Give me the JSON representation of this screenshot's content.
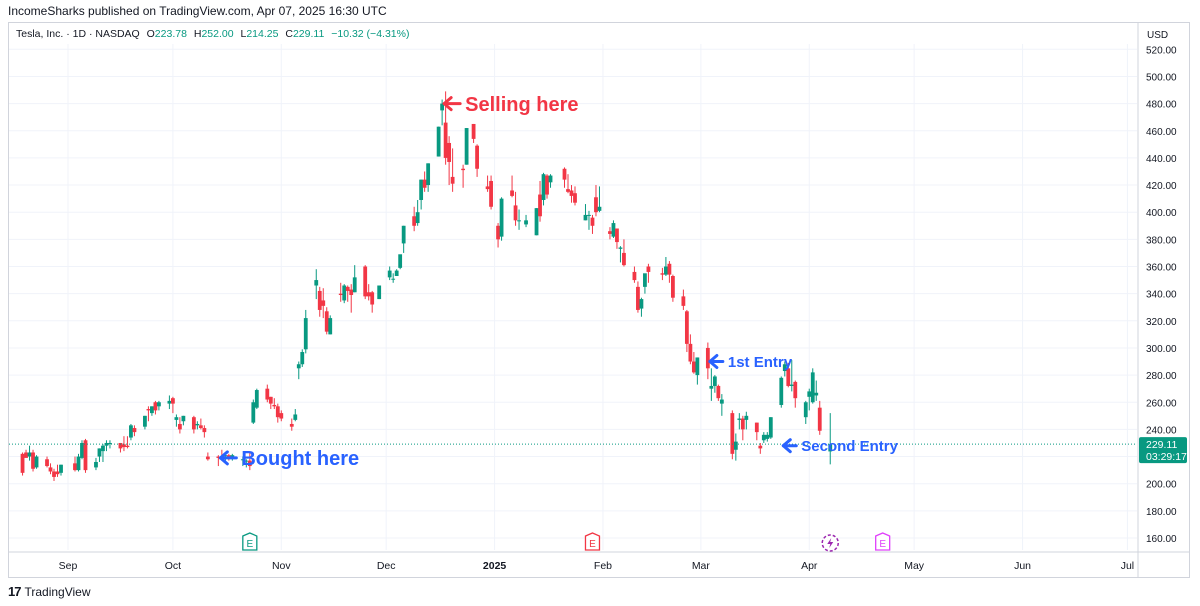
{
  "header": {
    "published_text": "IncomeSharks published on TradingView.com, Apr 07, 2025 16:30 UTC"
  },
  "legend": {
    "symbol": "Tesla, Inc. · 1D · NASDAQ",
    "o_label": "O",
    "o_value": "223.78",
    "h_label": "H",
    "h_value": "252.00",
    "l_label": "L",
    "l_value": "214.25",
    "c_label": "C",
    "c_value": "229.11",
    "change": "−10.32 (−4.31%)"
  },
  "price_axis": {
    "currency": "USD"
  },
  "footer": {
    "brand": "TradingView",
    "logo_glyph": "17"
  },
  "colors": {
    "up": "#089981",
    "down": "#f23645",
    "annotation_red": "#f23645",
    "annotation_blue": "#2962ff",
    "grid": "#f0f3fa"
  },
  "chart_data": {
    "type": "candlestick",
    "title": "Tesla, Inc. · 1D · NASDAQ",
    "ylim": [
      150,
      525
    ],
    "y_ticks": [
      160,
      180,
      200,
      220,
      240,
      260,
      280,
      300,
      320,
      340,
      360,
      380,
      400,
      420,
      440,
      460,
      480,
      500,
      520
    ],
    "y_tick_labels": [
      "160.00",
      "180.00",
      "200.00",
      "220.00",
      "240.00",
      "260.00",
      "280.00",
      "300.00",
      "320.00",
      "340.00",
      "360.00",
      "380.00",
      "400.00",
      "420.00",
      "440.00",
      "460.00",
      "480.00",
      "500.00",
      "520.00"
    ],
    "x_ticks": [
      {
        "label": "Sep",
        "date": "2024-09-01",
        "bold": false
      },
      {
        "label": "Oct",
        "date": "2024-10-01",
        "bold": false
      },
      {
        "label": "Nov",
        "date": "2024-11-01",
        "bold": false
      },
      {
        "label": "Dec",
        "date": "2024-12-01",
        "bold": false
      },
      {
        "label": "2025",
        "date": "2025-01-01",
        "bold": true
      },
      {
        "label": "Feb",
        "date": "2025-02-01",
        "bold": false
      },
      {
        "label": "Mar",
        "date": "2025-03-01",
        "bold": false
      },
      {
        "label": "Apr",
        "date": "2025-04-01",
        "bold": false
      },
      {
        "label": "May",
        "date": "2025-05-01",
        "bold": false
      },
      {
        "label": "Jun",
        "date": "2025-06-01",
        "bold": false
      },
      {
        "label": "Jul",
        "date": "2025-07-01",
        "bold": false
      }
    ],
    "current_price": {
      "value": 229.11,
      "label": "229.11",
      "countdown": "03:29:17"
    },
    "events": [
      {
        "glyph": "E",
        "date": "2024-10-23",
        "color": "#089981"
      },
      {
        "glyph": "E",
        "date": "2025-01-29",
        "color": "#f23645"
      },
      {
        "glyph": "E",
        "date": "2025-04-22",
        "color": "#e040fb"
      }
    ],
    "splits_icon": {
      "date": "2025-04-07",
      "color": "#9c27b0"
    },
    "annotations": [
      {
        "text": "Selling here",
        "date": "2024-12-17",
        "price": 480,
        "color": "#f23645",
        "size": 20
      },
      {
        "text": "1st Entry",
        "date": "2025-03-03",
        "price": 290,
        "color": "#2962ff",
        "size": 15
      },
      {
        "text": "Second Entry",
        "date": "2025-03-24",
        "price": 228,
        "color": "#2962ff",
        "size": 15
      },
      {
        "text": "Bought here",
        "date": "2024-10-14",
        "price": 219,
        "color": "#2962ff",
        "size": 20
      }
    ],
    "candles": [
      [
        "2024-08-19",
        222,
        223,
        208,
        206
      ],
      [
        "2024-08-20",
        223,
        225,
        219,
        220
      ],
      [
        "2024-08-21",
        220,
        228,
        223,
        217
      ],
      [
        "2024-08-22",
        223,
        225,
        211,
        209
      ],
      [
        "2024-08-23",
        212,
        221,
        220,
        211
      ],
      [
        "2024-08-26",
        218,
        220,
        213,
        212
      ],
      [
        "2024-08-27",
        212,
        215,
        209,
        207
      ],
      [
        "2024-08-28",
        209,
        211,
        205,
        202
      ],
      [
        "2024-08-29",
        209,
        214,
        207,
        205
      ],
      [
        "2024-08-30",
        208,
        214,
        214,
        206
      ],
      [
        "2024-09-03",
        215,
        220,
        210,
        209
      ],
      [
        "2024-09-04",
        210,
        222,
        220,
        209
      ],
      [
        "2024-09-05",
        219,
        232,
        230,
        218
      ],
      [
        "2024-09-06",
        232,
        233,
        210,
        208
      ],
      [
        "2024-09-09",
        212,
        219,
        216,
        210
      ],
      [
        "2024-09-10",
        220,
        226,
        226,
        216
      ],
      [
        "2024-09-11",
        224,
        229,
        228,
        216
      ],
      [
        "2024-09-12",
        228,
        232,
        230,
        224
      ],
      [
        "2024-09-13",
        230,
        232,
        230,
        226
      ],
      [
        "2024-09-16",
        230,
        230,
        226,
        223
      ],
      [
        "2024-09-17",
        229,
        235,
        227,
        224
      ],
      [
        "2024-09-18",
        228,
        235,
        227,
        226
      ],
      [
        "2024-09-19",
        234,
        244,
        243,
        232
      ],
      [
        "2024-09-20",
        241,
        243,
        238,
        235
      ],
      [
        "2024-09-23",
        242,
        250,
        250,
        240
      ],
      [
        "2024-09-24",
        255,
        257,
        254,
        246
      ],
      [
        "2024-09-25",
        252,
        257,
        257,
        250
      ],
      [
        "2024-09-26",
        260,
        261,
        254,
        251
      ],
      [
        "2024-09-27",
        257,
        261,
        260,
        254
      ],
      [
        "2024-09-30",
        259,
        265,
        261,
        255
      ],
      [
        "2024-10-01",
        263,
        264,
        259,
        252
      ],
      [
        "2024-10-02",
        247,
        251,
        249,
        242
      ],
      [
        "2024-10-03",
        244,
        249,
        240,
        237
      ],
      [
        "2024-10-04",
        246,
        250,
        250,
        243
      ],
      [
        "2024-10-07",
        249,
        250,
        240,
        237
      ],
      [
        "2024-10-08",
        243,
        246,
        244,
        240
      ],
      [
        "2024-10-09",
        243,
        248,
        241,
        240
      ],
      [
        "2024-10-10",
        241,
        243,
        238,
        234
      ],
      [
        "2024-10-11",
        220,
        223,
        218,
        217
      ],
      [
        "2024-10-14",
        220,
        221,
        219,
        213
      ],
      [
        "2024-10-15",
        220,
        225,
        219,
        217
      ],
      [
        "2024-10-16",
        221,
        222,
        221,
        215
      ],
      [
        "2024-10-17",
        221,
        222,
        220,
        217
      ],
      [
        "2024-10-18",
        220,
        222,
        221,
        217
      ],
      [
        "2024-10-21",
        218,
        220,
        218,
        213
      ],
      [
        "2024-10-22",
        217,
        218,
        217,
        212
      ],
      [
        "2024-10-23",
        217,
        223,
        213,
        210
      ],
      [
        "2024-10-24",
        245,
        262,
        260,
        244
      ],
      [
        "2024-10-25",
        256,
        270,
        269,
        255
      ],
      [
        "2024-10-28",
        270,
        273,
        262,
        260
      ],
      [
        "2024-10-29",
        264,
        264,
        259,
        255
      ],
      [
        "2024-10-30",
        258,
        263,
        257,
        255
      ],
      [
        "2024-10-31",
        257,
        259,
        249,
        245
      ],
      [
        "2024-11-01",
        252,
        254,
        248,
        246
      ],
      [
        "2024-11-04",
        244,
        248,
        242,
        239
      ],
      [
        "2024-11-05",
        247,
        255,
        251,
        246
      ],
      [
        "2024-11-06",
        285,
        290,
        288,
        277
      ],
      [
        "2024-11-07",
        288,
        299,
        297,
        286
      ],
      [
        "2024-11-08",
        299,
        328,
        322,
        296
      ],
      [
        "2024-11-11",
        346,
        358,
        350,
        336
      ],
      [
        "2024-11-12",
        342,
        345,
        328,
        323
      ],
      [
        "2024-11-13",
        335,
        344,
        331,
        322
      ],
      [
        "2024-11-14",
        327,
        330,
        312,
        310
      ],
      [
        "2024-11-15",
        310,
        324,
        322,
        310
      ],
      [
        "2024-11-18",
        340,
        348,
        339,
        334
      ],
      [
        "2024-11-19",
        335,
        347,
        346,
        333
      ],
      [
        "2024-11-20",
        345,
        346,
        342,
        334
      ],
      [
        "2024-11-21",
        343,
        347,
        339,
        326
      ],
      [
        "2024-11-22",
        341,
        361,
        352,
        341
      ],
      [
        "2024-11-25",
        360,
        361,
        338,
        336
      ],
      [
        "2024-11-26",
        341,
        347,
        338,
        335
      ],
      [
        "2024-11-27",
        341,
        342,
        332,
        326
      ],
      [
        "2024-11-29",
        336,
        346,
        346,
        336
      ],
      [
        "2024-12-02",
        352,
        360,
        357,
        350
      ],
      [
        "2024-12-03",
        351,
        355,
        351,
        348
      ],
      [
        "2024-12-04",
        353,
        358,
        357,
        353
      ],
      [
        "2024-12-05",
        359,
        368,
        369,
        358
      ],
      [
        "2024-12-06",
        377,
        390,
        390,
        370
      ],
      [
        "2024-12-09",
        397,
        404,
        390,
        386
      ],
      [
        "2024-12-10",
        392,
        409,
        400,
        390
      ],
      [
        "2024-12-11",
        409,
        424,
        424,
        402
      ],
      [
        "2024-12-12",
        424,
        430,
        418,
        415
      ],
      [
        "2024-12-13",
        420,
        436,
        436,
        415
      ],
      [
        "2024-12-16",
        441,
        463,
        463,
        441
      ],
      [
        "2024-12-17",
        475,
        483,
        480,
        464
      ],
      [
        "2024-12-18",
        466,
        489,
        440,
        435
      ],
      [
        "2024-12-19",
        451,
        456,
        437,
        420
      ],
      [
        "2024-12-20",
        426,
        447,
        421,
        415
      ],
      [
        "2024-12-23",
        432,
        435,
        431,
        418
      ],
      [
        "2024-12-24",
        435,
        462,
        462,
        435
      ],
      [
        "2024-12-26",
        465,
        465,
        454,
        451
      ],
      [
        "2024-12-27",
        449,
        450,
        432,
        426
      ],
      [
        "2024-12-30",
        419,
        427,
        417,
        415
      ],
      [
        "2024-12-31",
        423,
        427,
        404,
        402
      ],
      [
        "2025-01-02",
        390,
        392,
        380,
        374
      ],
      [
        "2025-01-03",
        382,
        411,
        410,
        379
      ],
      [
        "2025-01-06",
        416,
        427,
        412,
        411
      ],
      [
        "2025-01-07",
        405,
        415,
        394,
        390
      ],
      [
        "2025-01-08",
        394,
        402,
        394,
        387
      ],
      [
        "2025-01-10",
        391,
        398,
        394,
        389
      ],
      [
        "2025-01-13",
        383,
        403,
        403,
        383
      ],
      [
        "2025-01-14",
        413,
        423,
        397,
        393
      ],
      [
        "2025-01-15",
        409,
        429,
        428,
        405
      ],
      [
        "2025-01-16",
        427,
        428,
        413,
        410
      ],
      [
        "2025-01-17",
        422,
        428,
        427,
        418
      ],
      [
        "2025-01-21",
        432,
        433,
        424,
        418
      ],
      [
        "2025-01-22",
        417,
        428,
        415,
        414
      ],
      [
        "2025-01-23",
        416,
        420,
        412,
        407
      ],
      [
        "2025-01-24",
        414,
        419,
        407,
        405
      ],
      [
        "2025-01-27",
        394,
        406,
        398,
        394
      ],
      [
        "2025-01-28",
        398,
        401,
        398,
        387
      ],
      [
        "2025-01-29",
        396,
        398,
        390,
        384
      ],
      [
        "2025-01-30",
        411,
        420,
        400,
        397
      ],
      [
        "2025-01-31",
        401,
        419,
        404,
        400
      ],
      [
        "2025-02-03",
        386,
        389,
        384,
        380
      ],
      [
        "2025-02-04",
        382,
        394,
        392,
        381
      ],
      [
        "2025-02-05",
        388,
        388,
        378,
        373
      ],
      [
        "2025-02-06",
        373,
        375,
        374,
        363
      ],
      [
        "2025-02-07",
        370,
        380,
        361,
        360
      ],
      [
        "2025-02-10",
        356,
        360,
        350,
        348
      ],
      [
        "2025-02-11",
        345,
        349,
        328,
        326
      ],
      [
        "2025-02-12",
        329,
        337,
        336,
        323
      ],
      [
        "2025-02-13",
        345,
        349,
        355,
        340
      ],
      [
        "2025-02-14",
        360,
        362,
        356,
        348
      ],
      [
        "2025-02-18",
        355,
        359,
        354,
        350
      ],
      [
        "2025-02-19",
        354,
        367,
        360,
        353
      ],
      [
        "2025-02-20",
        362,
        364,
        354,
        348
      ],
      [
        "2025-02-21",
        353,
        354,
        337,
        334
      ],
      [
        "2025-02-24",
        338,
        343,
        331,
        328
      ],
      [
        "2025-02-25",
        327,
        328,
        303,
        297
      ],
      [
        "2025-02-26",
        303,
        310,
        290,
        288
      ],
      [
        "2025-02-27",
        290,
        297,
        282,
        281
      ],
      [
        "2025-02-28",
        280,
        293,
        293,
        273
      ],
      [
        "2025-03-03",
        300,
        304,
        285,
        277
      ],
      [
        "2025-03-04",
        270,
        285,
        272,
        261
      ],
      [
        "2025-03-05",
        272,
        280,
        279,
        267
      ],
      [
        "2025-03-06",
        272,
        273,
        263,
        261
      ],
      [
        "2025-03-07",
        259,
        266,
        262,
        250
      ],
      [
        "2025-03-10",
        252,
        254,
        222,
        218
      ],
      [
        "2025-03-11",
        225,
        237,
        231,
        217
      ],
      [
        "2025-03-12",
        247,
        252,
        248,
        240
      ],
      [
        "2025-03-13",
        248,
        250,
        240,
        232
      ],
      [
        "2025-03-14",
        247,
        253,
        250,
        240
      ],
      [
        "2025-03-17",
        245,
        245,
        238,
        232
      ],
      [
        "2025-03-18",
        228,
        230,
        226,
        222
      ],
      [
        "2025-03-19",
        232,
        238,
        236,
        230
      ],
      [
        "2025-03-20",
        233,
        238,
        236,
        231
      ],
      [
        "2025-03-21",
        234,
        249,
        249,
        233
      ],
      [
        "2025-03-24",
        258,
        279,
        278,
        256
      ],
      [
        "2025-03-25",
        283,
        290,
        288,
        279
      ],
      [
        "2025-03-26",
        285,
        289,
        272,
        271
      ],
      [
        "2025-03-27",
        272,
        291,
        273,
        268
      ],
      [
        "2025-03-28",
        275,
        276,
        263,
        256
      ],
      [
        "2025-03-31",
        249,
        261,
        260,
        244
      ],
      [
        "2025-04-01",
        264,
        270,
        268,
        254
      ],
      [
        "2025-04-02",
        260,
        285,
        282,
        259
      ],
      [
        "2025-04-03",
        265,
        276,
        267,
        261
      ],
      [
        "2025-04-04",
        256,
        261,
        239,
        236
      ],
      [
        "2025-04-07",
        223.78,
        252,
        229.11,
        214.25
      ]
    ]
  }
}
